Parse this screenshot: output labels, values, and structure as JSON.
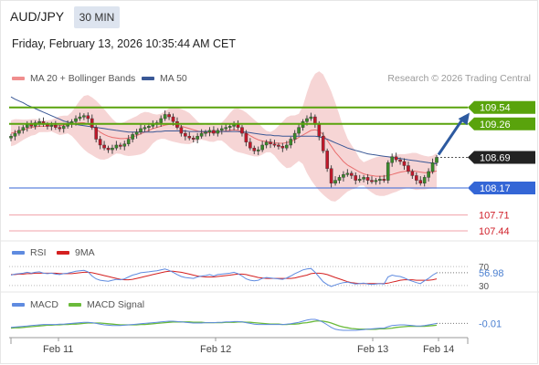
{
  "header": {
    "symbol": "AUD/JPY",
    "interval": "30 MIN",
    "datetime": "Friday, February 13, 2026 10:35:44 AM CET"
  },
  "legend": {
    "ma20": "MA 20 + Bollinger Bands",
    "ma50": "MA 50",
    "credit": "Research © 2026 Trading Central"
  },
  "rsi_legend": {
    "rsi": "RSI",
    "ma": "9MA"
  },
  "macd_legend": {
    "macd": "MACD",
    "signal": "MACD Signal"
  },
  "colors": {
    "resistance": "#59a30c",
    "support": "#3466d6",
    "target_line": "#f0a0a8",
    "target_text": "#d0202a",
    "bollinger": "#f6d5d5",
    "ma20": "#e96d6d",
    "ma50": "#3a5896",
    "candle_up": "#3a8a2a",
    "candle_down": "#c0182a",
    "last_price": "#222222",
    "arrow": "#2d5aa0",
    "rsi": "#5f8be0",
    "rsi_ma": "#d42020",
    "macd": "#5f8be0",
    "macd_signal": "#6aba3a"
  },
  "chart_data": [
    {
      "type": "candlestick",
      "title": "AUD/JPY",
      "interval": "30 MIN",
      "ylim": [
        107.3,
        109.8
      ],
      "x_ticks": [
        "Feb 11",
        "Feb 12",
        "Feb 13",
        "Feb 14"
      ],
      "price_levels": [
        {
          "role": "resistance",
          "label": "109.54",
          "value": 109.54
        },
        {
          "role": "resistance",
          "label": "109.26",
          "value": 109.26
        },
        {
          "role": "last",
          "label": "108.69",
          "value": 108.69
        },
        {
          "role": "support",
          "label": "108.17",
          "value": 108.17
        },
        {
          "role": "target",
          "label": "107.71",
          "value": 107.71
        },
        {
          "role": "target",
          "label": "107.44",
          "value": 107.44
        }
      ],
      "projection": {
        "direction": "up",
        "from": 108.69,
        "to": 109.45
      },
      "series": [
        {
          "name": "Price",
          "close": [
            109.05,
            109.1,
            109.15,
            109.2,
            109.25,
            109.22,
            109.28,
            109.3,
            109.25,
            109.22,
            109.24,
            109.2,
            109.18,
            109.22,
            109.25,
            109.3,
            109.35,
            109.38,
            109.4,
            109.35,
            109.2,
            109.0,
            108.9,
            108.85,
            108.82,
            108.85,
            108.9,
            108.88,
            108.92,
            109.0,
            109.08,
            109.12,
            109.18,
            109.2,
            109.22,
            109.25,
            109.28,
            109.35,
            109.42,
            109.38,
            109.3,
            109.2,
            109.1,
            109.05,
            109.02,
            109.0,
            109.05,
            109.1,
            109.12,
            109.15,
            109.1,
            109.15,
            109.18,
            109.2,
            109.22,
            109.25,
            109.2,
            109.1,
            108.95,
            108.85,
            108.8,
            108.82,
            108.9,
            108.95,
            108.92,
            108.9,
            108.88,
            108.85,
            108.9,
            109.0,
            109.1,
            109.2,
            109.3,
            109.35,
            109.38,
            109.25,
            109.05,
            108.8,
            108.5,
            108.25,
            108.3,
            108.35,
            108.4,
            108.42,
            108.38,
            108.3,
            108.32,
            108.35,
            108.3,
            108.28,
            108.3,
            108.32,
            108.3,
            108.6,
            108.7,
            108.65,
            108.62,
            108.55,
            108.45,
            108.38,
            108.3,
            108.25,
            108.35,
            108.45,
            108.6,
            108.69
          ]
        },
        {
          "name": "MA 20",
          "values": [
            109.1,
            109.12,
            109.14,
            109.16,
            109.18,
            109.2,
            109.21,
            109.22,
            109.22,
            109.22,
            109.23,
            109.23,
            109.23,
            109.24,
            109.25,
            109.26,
            109.27,
            109.28,
            109.28,
            109.26,
            109.22,
            109.17,
            109.12,
            109.08,
            109.05,
            109.03,
            109.02,
            109.01,
            109.01,
            109.02,
            109.04,
            109.06,
            109.09,
            109.12,
            109.15,
            109.18,
            109.2,
            109.22,
            109.24,
            109.25,
            109.25,
            109.24,
            109.22,
            109.2,
            109.18,
            109.16,
            109.14,
            109.12,
            109.11,
            109.11,
            109.11,
            109.12,
            109.13,
            109.14,
            109.15,
            109.16,
            109.15,
            109.13,
            109.1,
            109.06,
            109.02,
            108.99,
            108.97,
            108.96,
            108.95,
            108.94,
            108.93,
            108.93,
            108.94,
            108.96,
            108.99,
            109.03,
            109.07,
            109.11,
            109.15,
            109.16,
            109.14,
            109.08,
            108.98,
            108.88,
            108.78,
            108.7,
            108.62,
            108.56,
            108.52,
            108.48,
            108.44,
            108.41,
            108.39,
            108.38,
            108.37,
            108.37,
            108.37,
            108.38,
            108.4,
            108.42,
            108.44,
            108.45,
            108.46,
            108.46,
            108.45,
            108.44,
            108.43,
            108.43,
            108.44,
            108.46
          ]
        },
        {
          "name": "MA 50",
          "values": [
            109.72,
            109.68,
            109.65,
            109.62,
            109.58,
            109.55,
            109.52,
            109.49,
            109.46,
            109.43,
            109.4,
            109.37,
            109.34,
            109.31,
            109.29,
            109.27,
            109.25,
            109.24,
            109.23,
            109.22,
            109.21,
            109.2,
            109.19,
            109.18,
            109.17,
            109.16,
            109.15,
            109.14,
            109.13,
            109.12,
            109.12,
            109.12,
            109.12,
            109.12,
            109.12,
            109.12,
            109.13,
            109.13,
            109.14,
            109.14,
            109.14,
            109.14,
            109.14,
            109.14,
            109.13,
            109.13,
            109.13,
            109.13,
            109.13,
            109.13,
            109.13,
            109.13,
            109.13,
            109.13,
            109.13,
            109.13,
            109.13,
            109.12,
            109.12,
            109.11,
            109.1,
            109.09,
            109.08,
            109.07,
            109.07,
            109.06,
            109.06,
            109.05,
            109.05,
            109.05,
            109.05,
            109.05,
            109.05,
            109.05,
            109.05,
            109.05,
            109.04,
            109.02,
            109.0,
            108.97,
            108.94,
            108.91,
            108.88,
            108.85,
            108.83,
            108.81,
            108.79,
            108.77,
            108.75,
            108.74,
            108.73,
            108.72,
            108.71,
            108.7,
            108.69,
            108.68,
            108.67,
            108.66,
            108.65,
            108.64,
            108.63,
            108.62,
            108.61,
            108.6,
            108.59,
            108.58
          ]
        }
      ]
    },
    {
      "type": "line",
      "title": "RSI",
      "ylim": [
        20,
        80
      ],
      "y_ticks": [
        70,
        30
      ],
      "last_value_label": "56.98",
      "series": [
        {
          "name": "RSI",
          "values": [
            52,
            54,
            55,
            56,
            58,
            56,
            58,
            59,
            56,
            55,
            56,
            54,
            53,
            55,
            56,
            58,
            60,
            61,
            62,
            59,
            50,
            44,
            41,
            40,
            39,
            41,
            43,
            42,
            44,
            48,
            52,
            54,
            57,
            58,
            59,
            60,
            61,
            63,
            65,
            62,
            58,
            53,
            49,
            47,
            46,
            45,
            48,
            50,
            51,
            53,
            50,
            53,
            54,
            55,
            56,
            58,
            55,
            50,
            44,
            41,
            40,
            41,
            45,
            47,
            46,
            45,
            44,
            43,
            46,
            50,
            55,
            59,
            63,
            65,
            66,
            58,
            48,
            38,
            32,
            28,
            31,
            34,
            36,
            37,
            35,
            33,
            34,
            35,
            33,
            32,
            33,
            34,
            33,
            48,
            52,
            50,
            49,
            46,
            42,
            39,
            36,
            34,
            40,
            45,
            52,
            56.98
          ]
        },
        {
          "name": "9MA",
          "values": [
            53,
            53,
            54,
            54,
            55,
            55,
            56,
            56,
            56,
            56,
            56,
            56,
            55,
            55,
            55,
            55,
            56,
            57,
            58,
            58,
            57,
            55,
            53,
            51,
            49,
            47,
            45,
            43,
            42,
            42,
            43,
            45,
            47,
            49,
            51,
            53,
            55,
            57,
            59,
            60,
            60,
            59,
            58,
            56,
            54,
            52,
            50,
            49,
            48,
            48,
            48,
            49,
            50,
            51,
            52,
            53,
            54,
            54,
            53,
            51,
            49,
            47,
            46,
            45,
            45,
            45,
            45,
            45,
            45,
            45,
            46,
            48,
            50,
            52,
            55,
            56,
            56,
            55,
            53,
            50,
            47,
            44,
            41,
            38,
            36,
            35,
            34,
            34,
            34,
            34,
            34,
            34,
            34,
            35,
            37,
            39,
            41,
            42,
            42,
            42,
            41,
            41,
            41,
            41,
            42,
            44
          ]
        }
      ]
    },
    {
      "type": "line",
      "title": "MACD",
      "ylim": [
        -0.35,
        0.3
      ],
      "last_value_label": "-0.01",
      "series": [
        {
          "name": "MACD",
          "values": [
            -0.12,
            -0.11,
            -0.1,
            -0.09,
            -0.08,
            -0.07,
            -0.06,
            -0.05,
            -0.04,
            -0.04,
            -0.04,
            -0.04,
            -0.03,
            -0.03,
            -0.02,
            -0.01,
            0.0,
            0.01,
            0.02,
            0.02,
            0.01,
            -0.01,
            -0.03,
            -0.05,
            -0.06,
            -0.07,
            -0.07,
            -0.07,
            -0.06,
            -0.05,
            -0.04,
            -0.03,
            -0.02,
            -0.01,
            0.0,
            0.01,
            0.02,
            0.03,
            0.04,
            0.05,
            0.05,
            0.04,
            0.03,
            0.02,
            0.01,
            0.0,
            0.0,
            0.0,
            0.01,
            0.01,
            0.01,
            0.02,
            0.02,
            0.03,
            0.03,
            0.04,
            0.04,
            0.03,
            0.01,
            -0.01,
            -0.03,
            -0.04,
            -0.04,
            -0.04,
            -0.04,
            -0.04,
            -0.04,
            -0.04,
            -0.03,
            -0.02,
            -0.0,
            0.02,
            0.05,
            0.08,
            0.1,
            0.1,
            0.07,
            0.02,
            -0.05,
            -0.12,
            -0.17,
            -0.19,
            -0.2,
            -0.2,
            -0.2,
            -0.2,
            -0.19,
            -0.18,
            -0.17,
            -0.16,
            -0.15,
            -0.14,
            -0.14,
            -0.1,
            -0.07,
            -0.06,
            -0.05,
            -0.05,
            -0.06,
            -0.07,
            -0.08,
            -0.08,
            -0.07,
            -0.05,
            -0.03,
            -0.01
          ]
        },
        {
          "name": "MACD Signal",
          "values": [
            -0.14,
            -0.13,
            -0.13,
            -0.12,
            -0.11,
            -0.1,
            -0.09,
            -0.08,
            -0.07,
            -0.06,
            -0.06,
            -0.05,
            -0.05,
            -0.04,
            -0.04,
            -0.03,
            -0.03,
            -0.02,
            -0.01,
            -0.0,
            0.0,
            0.0,
            -0.0,
            -0.01,
            -0.02,
            -0.03,
            -0.04,
            -0.05,
            -0.05,
            -0.05,
            -0.05,
            -0.05,
            -0.04,
            -0.04,
            -0.03,
            -0.02,
            -0.01,
            0.0,
            0.01,
            0.02,
            0.03,
            0.03,
            0.03,
            0.03,
            0.03,
            0.02,
            0.02,
            0.02,
            0.01,
            0.01,
            0.01,
            0.01,
            0.01,
            0.02,
            0.02,
            0.02,
            0.03,
            0.03,
            0.02,
            0.02,
            0.01,
            -0.0,
            -0.01,
            -0.02,
            -0.03,
            -0.03,
            -0.03,
            -0.04,
            -0.04,
            -0.03,
            -0.03,
            -0.02,
            -0.0,
            0.01,
            0.03,
            0.05,
            0.06,
            0.05,
            0.03,
            -0.0,
            -0.04,
            -0.08,
            -0.11,
            -0.13,
            -0.15,
            -0.16,
            -0.17,
            -0.17,
            -0.17,
            -0.17,
            -0.17,
            -0.16,
            -0.16,
            -0.15,
            -0.14,
            -0.12,
            -0.11,
            -0.1,
            -0.09,
            -0.09,
            -0.09,
            -0.09,
            -0.09,
            -0.08,
            -0.07,
            -0.06
          ]
        }
      ]
    }
  ]
}
